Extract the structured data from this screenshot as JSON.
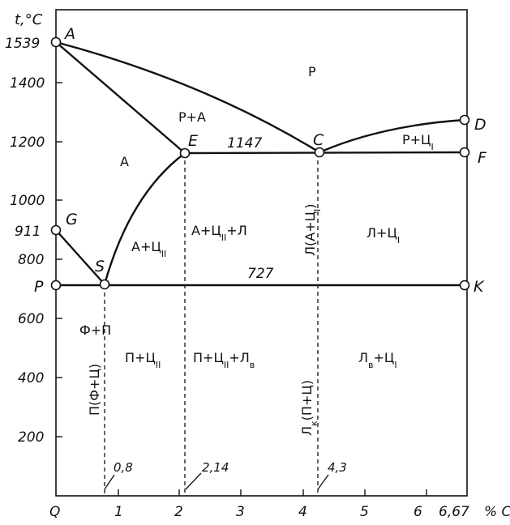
{
  "axes": {
    "y_unit": "t,°C",
    "x_unit": "% C",
    "y_ticks": [
      "1539",
      "1400",
      "1200",
      "1000",
      "911",
      "800",
      "600",
      "400",
      "200"
    ],
    "x_ticks": [
      "Q",
      "1",
      "2",
      "3",
      "4",
      "5",
      "6",
      "6,67"
    ]
  },
  "points": {
    "A": "A",
    "C": "C",
    "D": "D",
    "E": "E",
    "F": "F",
    "G": "G",
    "S": "S",
    "P": "P",
    "K": "K"
  },
  "phases": {
    "liquid": "Р",
    "liquid_austenite": "Р+А",
    "liquid_cementite1": "Р+Ц",
    "cementite1_sub": "I",
    "austenite": "А",
    "aust_cem2": "А+Ц",
    "aust_cem2_sub": "II",
    "aust_cem2_led": "А+Ц",
    "aust_cem2_led_sub": "II",
    "aust_cem2_led_tail": "+Л",
    "led_cem1": "Л+Ц",
    "led_cem1_sub": "I",
    "ferrite_pearlite": "Ф+П",
    "pearlite_cem2": "П+Ц",
    "pearlite_cem2_sub": "II",
    "pearl_cem2_led": "П+Ц",
    "pearl_cem2_led_sub": "II",
    "pearl_cem2_led_mid": "+Л",
    "pearl_cem2_led_sub2": "в",
    "ledb_cem1": "Л",
    "ledb_cem1_sub": "в",
    "ledb_cem1_tail": "+Ц",
    "ledb_cem1_sub2": "I",
    "vert_led_a_c": "Л(А+Ц",
    "vert_led_a_c_sub": "I",
    "vert_led_a_c_end": ")",
    "vert_p_fc": "П(Ф+Ц)",
    "vert_ledk": "Л",
    "vert_ledk_sub": "к",
    "vert_ledk_tail": "(П+Ц)"
  },
  "temps": {
    "eutectic": "1147",
    "eutectoid": "727"
  },
  "compositions": {
    "s": "0,8",
    "e": "2,14",
    "c": "4,3"
  }
}
